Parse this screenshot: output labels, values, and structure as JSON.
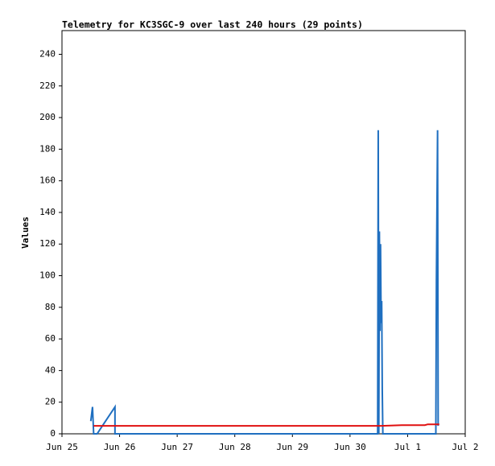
{
  "chart_data": {
    "type": "line",
    "title": "Telemetry for KC3SGC-9 over last 240 hours (29 points)",
    "y_label": "Values",
    "xlim": [
      0,
      7
    ],
    "xticks": [
      {
        "value": 0,
        "label": "Jun 25"
      },
      {
        "value": 1,
        "label": "Jun 26"
      },
      {
        "value": 2,
        "label": "Jun 27"
      },
      {
        "value": 3,
        "label": "Jun 28"
      },
      {
        "value": 4,
        "label": "Jun 29"
      },
      {
        "value": 5,
        "label": "Jun 30"
      },
      {
        "value": 6,
        "label": "Jul 1"
      },
      {
        "value": 7,
        "label": "Jul 2"
      }
    ],
    "ylim": [
      0,
      255
    ],
    "yticks": [
      0,
      20,
      40,
      60,
      80,
      100,
      120,
      140,
      160,
      180,
      200,
      220,
      240
    ],
    "grid": false,
    "series": [
      {
        "color": "#1f6fc0",
        "x": [
          0.5,
          0.53,
          0.55,
          0.61,
          0.92,
          0.92,
          5.48,
          5.49,
          5.5,
          5.51,
          5.52,
          5.53,
          5.54,
          5.55,
          5.56,
          5.57,
          5.58,
          6.49,
          6.5,
          6.52,
          6.53
        ],
        "values": [
          8,
          17,
          0,
          0,
          17,
          0,
          0,
          192,
          0,
          128,
          65,
          120,
          70,
          84,
          28,
          0,
          0,
          0,
          97,
          192,
          5
        ]
      },
      {
        "color": "#e01010",
        "x": [
          0.55,
          5.55,
          5.9,
          6.3,
          6.35,
          6.55
        ],
        "values": [
          5,
          5,
          5.5,
          5.5,
          6,
          6
        ]
      }
    ]
  }
}
